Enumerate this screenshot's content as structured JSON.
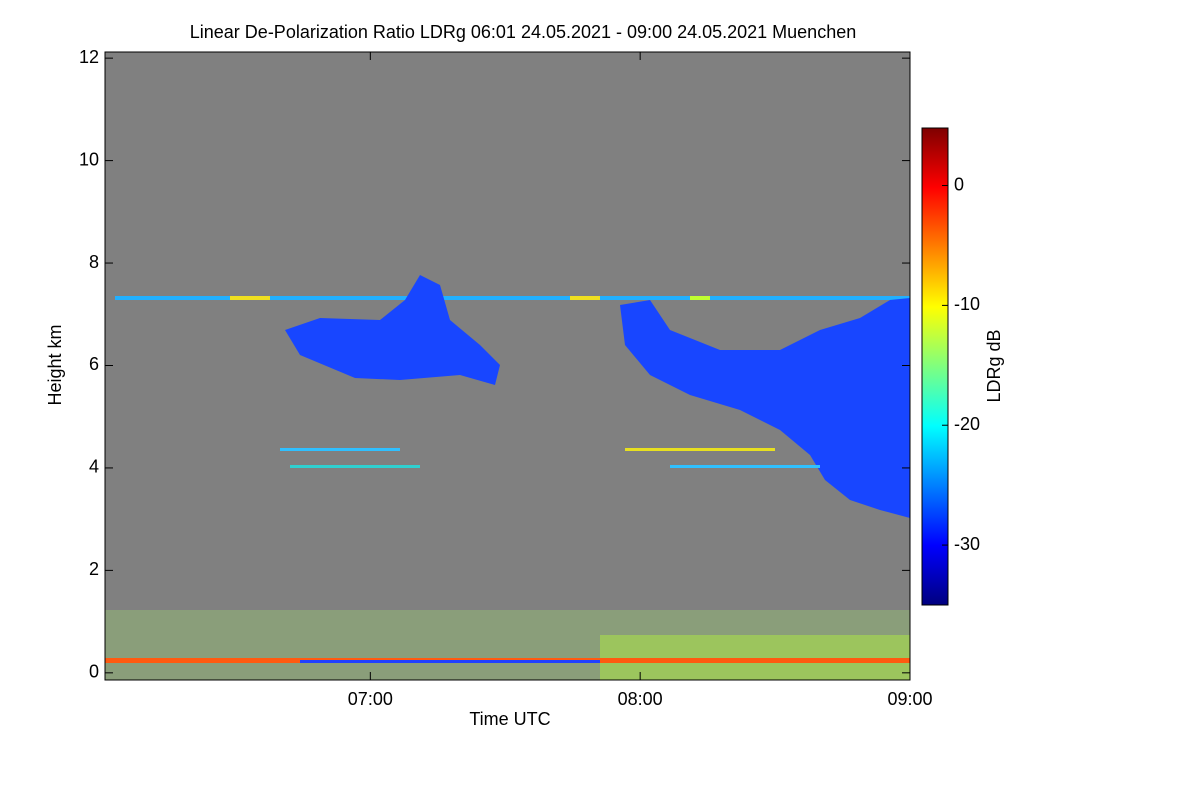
{
  "chart_data": {
    "type": "heatmap",
    "title": "Linear De-Polarization Ratio LDRg   06:01 24.05.2021 - 09:00 24.05.2021 Muenchen",
    "x_label": "Time UTC",
    "y_label": "Height km",
    "colorbar_label": "LDRg dB",
    "xlim": [
      6.0167,
      9.0
    ],
    "xticks": [
      {
        "value": 7,
        "label": "07:00"
      },
      {
        "value": 8,
        "label": "08:00"
      },
      {
        "value": 9,
        "label": "09:00"
      }
    ],
    "ylim": [
      -0.14,
      12.12
    ],
    "yticks": [
      0,
      2,
      4,
      6,
      8,
      10,
      12
    ],
    "clim": [
      -35,
      4.8
    ],
    "cticks": [
      0,
      -10,
      -20,
      -30
    ],
    "colormap": "jet",
    "background": "#808080"
  }
}
